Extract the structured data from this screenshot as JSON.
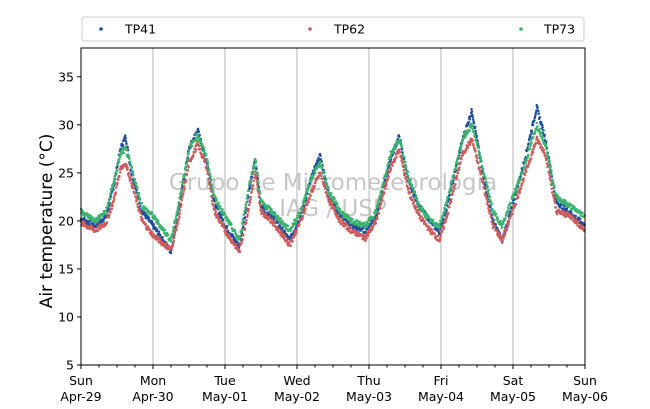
{
  "chart_data": {
    "type": "scatter",
    "ylabel": "Air temperature (°C)",
    "ylim": [
      5,
      38
    ],
    "yticks": [
      5,
      10,
      15,
      20,
      25,
      30,
      35
    ],
    "x_range_days": [
      "2018-04-29",
      "2018-05-06"
    ],
    "xticks": [
      {
        "day": "Sun",
        "date": "Apr-29"
      },
      {
        "day": "Mon",
        "date": "Apr-30"
      },
      {
        "day": "Tue",
        "date": "May-01"
      },
      {
        "day": "Wed",
        "date": "May-02"
      },
      {
        "day": "Thu",
        "date": "May-03"
      },
      {
        "day": "Fri",
        "date": "May-04"
      },
      {
        "day": "Sat",
        "date": "May-05"
      },
      {
        "day": "Sun",
        "date": "May-06"
      }
    ],
    "grid": "vertical",
    "legend": "top, horizontal",
    "watermark": [
      "Grupo de Micrometeorologia",
      "IAG / USP"
    ],
    "series": [
      {
        "name": "TP41",
        "color": "#1f4e9c",
        "points": [
          [
            0.0,
            20.2
          ],
          [
            0.2,
            19.5
          ],
          [
            0.35,
            20.5
          ],
          [
            0.45,
            23.5
          ],
          [
            0.55,
            27.5
          ],
          [
            0.62,
            28.8
          ],
          [
            0.7,
            25.0
          ],
          [
            0.85,
            21.0
          ],
          [
            1.0,
            19.5
          ],
          [
            1.25,
            16.8
          ],
          [
            1.35,
            21.0
          ],
          [
            1.5,
            27.5
          ],
          [
            1.62,
            29.5
          ],
          [
            1.75,
            26.0
          ],
          [
            1.85,
            22.0
          ],
          [
            2.0,
            19.5
          ],
          [
            2.2,
            17.3
          ],
          [
            2.32,
            22.5
          ],
          [
            2.42,
            26.5
          ],
          [
            2.5,
            21.5
          ],
          [
            2.65,
            20.5
          ],
          [
            2.9,
            18.0
          ],
          [
            3.05,
            20.5
          ],
          [
            3.2,
            24.5
          ],
          [
            3.32,
            26.8
          ],
          [
            3.45,
            22.5
          ],
          [
            3.6,
            20.5
          ],
          [
            3.75,
            19.5
          ],
          [
            3.95,
            19.0
          ],
          [
            4.1,
            20.5
          ],
          [
            4.3,
            26.5
          ],
          [
            4.42,
            28.8
          ],
          [
            4.55,
            24.0
          ],
          [
            4.7,
            21.5
          ],
          [
            4.85,
            20.0
          ],
          [
            4.98,
            18.8
          ],
          [
            5.1,
            22.0
          ],
          [
            5.3,
            28.5
          ],
          [
            5.43,
            31.5
          ],
          [
            5.58,
            25.0
          ],
          [
            5.72,
            20.0
          ],
          [
            5.85,
            18.0
          ],
          [
            5.95,
            20.5
          ],
          [
            6.15,
            26.0
          ],
          [
            6.33,
            31.8
          ],
          [
            6.45,
            28.5
          ],
          [
            6.6,
            22.0
          ],
          [
            6.8,
            20.8
          ],
          [
            7.0,
            19.5
          ]
        ]
      },
      {
        "name": "TP62",
        "color": "#cd5c5c",
        "points": [
          [
            0.0,
            19.8
          ],
          [
            0.2,
            19.0
          ],
          [
            0.35,
            19.8
          ],
          [
            0.45,
            22.0
          ],
          [
            0.55,
            25.5
          ],
          [
            0.62,
            26.0
          ],
          [
            0.7,
            24.0
          ],
          [
            0.85,
            20.0
          ],
          [
            1.0,
            18.5
          ],
          [
            1.25,
            17.0
          ],
          [
            1.35,
            20.0
          ],
          [
            1.5,
            26.0
          ],
          [
            1.62,
            28.0
          ],
          [
            1.75,
            25.5
          ],
          [
            1.85,
            21.0
          ],
          [
            2.0,
            19.0
          ],
          [
            2.2,
            16.8
          ],
          [
            2.32,
            21.0
          ],
          [
            2.42,
            25.0
          ],
          [
            2.5,
            21.0
          ],
          [
            2.65,
            20.0
          ],
          [
            2.9,
            17.5
          ],
          [
            3.05,
            20.0
          ],
          [
            3.2,
            23.0
          ],
          [
            3.32,
            25.0
          ],
          [
            3.45,
            22.0
          ],
          [
            3.6,
            20.0
          ],
          [
            3.75,
            19.0
          ],
          [
            3.95,
            18.2
          ],
          [
            4.1,
            20.0
          ],
          [
            4.3,
            25.5
          ],
          [
            4.42,
            27.5
          ],
          [
            4.55,
            23.0
          ],
          [
            4.7,
            20.5
          ],
          [
            4.85,
            19.0
          ],
          [
            4.98,
            18.0
          ],
          [
            5.1,
            21.0
          ],
          [
            5.3,
            27.0
          ],
          [
            5.43,
            28.5
          ],
          [
            5.58,
            24.0
          ],
          [
            5.72,
            19.5
          ],
          [
            5.85,
            18.0
          ],
          [
            5.95,
            20.0
          ],
          [
            6.15,
            24.5
          ],
          [
            6.33,
            28.5
          ],
          [
            6.45,
            27.0
          ],
          [
            6.6,
            21.0
          ],
          [
            6.8,
            20.5
          ],
          [
            7.0,
            19.0
          ]
        ]
      },
      {
        "name": "TP73",
        "color": "#3cb371",
        "points": [
          [
            0.0,
            21.0
          ],
          [
            0.2,
            20.0
          ],
          [
            0.35,
            21.0
          ],
          [
            0.45,
            24.0
          ],
          [
            0.55,
            27.0
          ],
          [
            0.62,
            27.5
          ],
          [
            0.7,
            25.5
          ],
          [
            0.85,
            21.5
          ],
          [
            1.0,
            20.5
          ],
          [
            1.25,
            18.0
          ],
          [
            1.35,
            21.5
          ],
          [
            1.5,
            27.5
          ],
          [
            1.62,
            29.0
          ],
          [
            1.75,
            26.5
          ],
          [
            1.85,
            22.5
          ],
          [
            2.0,
            20.5
          ],
          [
            2.2,
            18.0
          ],
          [
            2.32,
            23.0
          ],
          [
            2.42,
            26.5
          ],
          [
            2.5,
            22.0
          ],
          [
            2.65,
            21.0
          ],
          [
            2.9,
            19.0
          ],
          [
            3.05,
            21.0
          ],
          [
            3.2,
            24.5
          ],
          [
            3.32,
            26.0
          ],
          [
            3.45,
            23.0
          ],
          [
            3.6,
            21.0
          ],
          [
            3.75,
            20.0
          ],
          [
            3.95,
            19.5
          ],
          [
            4.1,
            21.0
          ],
          [
            4.3,
            27.0
          ],
          [
            4.42,
            28.5
          ],
          [
            4.55,
            24.5
          ],
          [
            4.7,
            21.5
          ],
          [
            4.85,
            20.0
          ],
          [
            4.98,
            19.5
          ],
          [
            5.1,
            22.5
          ],
          [
            5.3,
            28.5
          ],
          [
            5.43,
            30.0
          ],
          [
            5.58,
            25.5
          ],
          [
            5.72,
            21.0
          ],
          [
            5.85,
            19.5
          ],
          [
            5.95,
            21.5
          ],
          [
            6.15,
            25.5
          ],
          [
            6.33,
            30.0
          ],
          [
            6.45,
            28.0
          ],
          [
            6.6,
            22.5
          ],
          [
            6.8,
            21.5
          ],
          [
            7.0,
            20.5
          ]
        ]
      }
    ]
  }
}
